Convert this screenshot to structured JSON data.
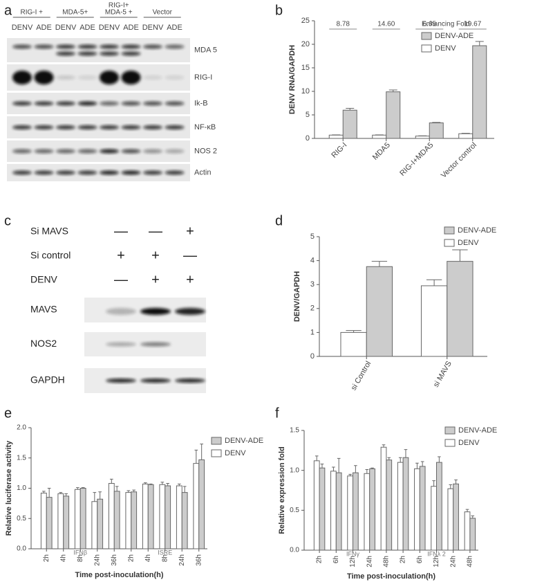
{
  "chart_data": [
    {
      "type": "bar",
      "label": "b",
      "ylabel": "DENV RNA/GAPDH",
      "legend_title": "Enhancing Fold",
      "annotations": [
        "8.78",
        "14.60",
        "6.65",
        "19.67"
      ],
      "categories": [
        "RIG-I",
        "MDA5",
        "RIG-I+MDA5",
        "Vector control"
      ],
      "series": [
        {
          "name": "DENV",
          "color": "#ffffff",
          "values": [
            0.7,
            0.7,
            0.5,
            1.0
          ],
          "errors": [
            0.05,
            0.05,
            0.05,
            0.08
          ]
        },
        {
          "name": "DENV-ADE",
          "color": "#cccccc",
          "values": [
            6.0,
            9.9,
            3.3,
            19.7
          ],
          "errors": [
            0.4,
            0.4,
            0.1,
            0.9
          ]
        }
      ],
      "ylim": [
        0,
        25
      ],
      "yticks": [
        0,
        5,
        10,
        15,
        20,
        25
      ]
    },
    {
      "type": "bar",
      "label": "d",
      "ylabel": "DENV/GAPDH",
      "categories": [
        "si Control",
        "si MAVS"
      ],
      "series": [
        {
          "name": "DENV",
          "color": "#ffffff",
          "values": [
            1.0,
            2.95
          ],
          "errors": [
            0.08,
            0.25
          ]
        },
        {
          "name": "DENV-ADE",
          "color": "#cccccc",
          "values": [
            3.75,
            3.97
          ],
          "errors": [
            0.22,
            0.48
          ]
        }
      ],
      "ylim": [
        0,
        5
      ],
      "yticks": [
        0,
        1,
        2,
        3,
        4,
        5
      ]
    },
    {
      "type": "bar",
      "label": "e",
      "ylabel": "Relative luciferase activity",
      "xlabel": "Time post-inoculation(h)",
      "group_labels": [
        "IFNβ",
        "ISRE"
      ],
      "categories": [
        "2h",
        "4h",
        "8h",
        "24h",
        "36h",
        "2h",
        "4h",
        "8h",
        "24h",
        "36h"
      ],
      "series": [
        {
          "name": "DENV",
          "color": "#ffffff",
          "values": [
            0.92,
            0.91,
            0.98,
            0.78,
            1.08,
            0.93,
            1.07,
            1.06,
            1.04,
            1.41
          ],
          "errors": [
            0.03,
            0.02,
            0.03,
            0.15,
            0.07,
            0.03,
            0.02,
            0.04,
            0.03,
            0.22
          ]
        },
        {
          "name": "DENV-ADE",
          "color": "#cccccc",
          "values": [
            0.85,
            0.87,
            1.0,
            0.82,
            0.95,
            0.94,
            1.06,
            1.04,
            0.93,
            1.47
          ],
          "errors": [
            0.15,
            0.04,
            0.01,
            0.12,
            0.08,
            0.03,
            0.01,
            0.04,
            0.1,
            0.26
          ]
        }
      ],
      "ylim": [
        0,
        2
      ],
      "yticks": [
        {
          "value": 0,
          "label": "0.0"
        },
        0.5,
        {
          "value": 1,
          "label": "1.0"
        },
        1.5,
        {
          "value": 2,
          "label": "2.0"
        }
      ]
    },
    {
      "type": "bar",
      "label": "f",
      "ylabel": "Relative  expression fold",
      "xlabel": "Time post-inoculation(h)",
      "group_labels": [
        "IFNγ",
        "IFNλ 2"
      ],
      "categories": [
        "2h",
        "6h",
        "12h",
        "24h",
        "48h",
        "2h",
        "6h",
        "12h",
        "24h",
        "48h"
      ],
      "series": [
        {
          "name": "DENV",
          "color": "#ffffff",
          "values": [
            1.12,
            0.99,
            0.93,
            0.96,
            1.29,
            1.1,
            1.02,
            0.8,
            0.77,
            0.48
          ],
          "errors": [
            0.06,
            0.05,
            0.02,
            0.05,
            0.03,
            0.06,
            0.07,
            0.07,
            0.05,
            0.03
          ]
        },
        {
          "name": "DENV-ADE",
          "color": "#cccccc",
          "values": [
            1.03,
            0.97,
            0.97,
            1.02,
            1.13,
            1.16,
            1.05,
            1.1,
            0.83,
            0.4
          ],
          "errors": [
            0.05,
            0.18,
            0.09,
            0.01,
            0.03,
            0.1,
            0.06,
            0.07,
            0.05,
            0.03
          ]
        }
      ],
      "ylim": [
        0,
        1.5
      ],
      "yticks": [
        {
          "value": 0,
          "label": "0.0"
        },
        0.5,
        {
          "value": 1,
          "label": "1.0"
        },
        1.5
      ]
    }
  ],
  "blots": [
    {
      "label": "a",
      "groups": [
        [
          "RIG-I +"
        ],
        [
          "MDA-5+"
        ],
        [
          "RIG-I+",
          "MDA-5 +"
        ],
        [
          "Vector"
        ]
      ],
      "lanes": [
        "DENV",
        "ADE",
        "DENV",
        "ADE",
        "DENV",
        "ADE",
        "DENV",
        "ADE"
      ],
      "rows": [
        "MDA 5",
        "RIG-I",
        "Ik-B",
        "NF-κB",
        "NOS 2",
        "Actin"
      ]
    },
    {
      "label": "c",
      "conditions": [
        {
          "name": "Si MAVS",
          "states": [
            "—",
            "—",
            "+"
          ]
        },
        {
          "name": "Si control",
          "states": [
            "+",
            "+",
            "—"
          ]
        },
        {
          "name": "DENV",
          "states": [
            "—",
            "+",
            "+"
          ]
        }
      ],
      "rows": [
        "MAVS",
        "NOS2",
        "GAPDH"
      ]
    }
  ]
}
